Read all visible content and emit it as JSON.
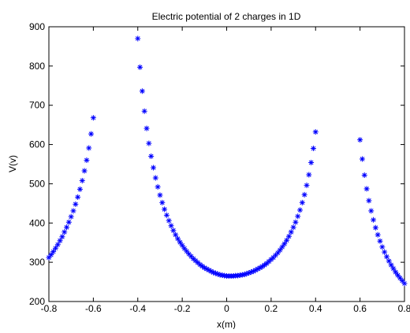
{
  "chart_data": {
    "type": "scatter",
    "title": "Electric potential of 2 charges in 1D",
    "xlabel": "x(m)",
    "ylabel": "V(v)",
    "xlim": [
      -0.8,
      0.8
    ],
    "ylim": [
      200,
      900
    ],
    "xticks": [
      "-0.8",
      "-0.6",
      "-0.4",
      "-0.2",
      "0",
      "0.2",
      "0.4",
      "0.6",
      "0.8"
    ],
    "yticks": [
      "200",
      "300",
      "400",
      "500",
      "600",
      "700",
      "800",
      "900"
    ],
    "grid": false,
    "marker": "*",
    "marker_color": "#0000ff",
    "charges_at": [
      -0.5,
      0.5
    ],
    "series": [
      {
        "x_start": -0.8,
        "x_end": 0.8,
        "x_step": 0.01,
        "excluded_x_ranges": [
          [
            -0.6,
            -0.4
          ],
          [
            0.4,
            0.6
          ]
        ]
      }
    ],
    "points": [
      [
        -0.8,
        312
      ],
      [
        -0.79,
        319
      ],
      [
        -0.78,
        327
      ],
      [
        -0.77,
        336
      ],
      [
        -0.76,
        345
      ],
      [
        -0.75,
        355
      ],
      [
        -0.74,
        365
      ],
      [
        -0.73,
        377
      ],
      [
        -0.72,
        389
      ],
      [
        -0.71,
        402
      ],
      [
        -0.7,
        416
      ],
      [
        -0.69,
        431
      ],
      [
        -0.68,
        448
      ],
      [
        -0.67,
        466
      ],
      [
        -0.66,
        486
      ],
      [
        -0.65,
        508
      ],
      [
        -0.64,
        533
      ],
      [
        -0.63,
        560
      ],
      [
        -0.62,
        591
      ],
      [
        -0.61,
        627
      ],
      [
        -0.6,
        668
      ],
      [
        -0.4,
        870
      ],
      [
        -0.39,
        797
      ],
      [
        -0.38,
        736
      ],
      [
        -0.37,
        685
      ],
      [
        -0.36,
        641
      ],
      [
        -0.35,
        603
      ],
      [
        -0.34,
        570
      ],
      [
        -0.33,
        541
      ],
      [
        -0.32,
        515
      ],
      [
        -0.31,
        492
      ],
      [
        -0.3,
        471
      ],
      [
        -0.29,
        452
      ],
      [
        -0.28,
        435
      ],
      [
        -0.27,
        420
      ],
      [
        -0.26,
        406
      ],
      [
        -0.25,
        393
      ],
      [
        -0.24,
        381
      ],
      [
        -0.23,
        370
      ],
      [
        -0.22,
        360
      ],
      [
        -0.21,
        351
      ],
      [
        -0.2,
        343
      ],
      [
        -0.19,
        335
      ],
      [
        -0.18,
        328
      ],
      [
        -0.17,
        321
      ],
      [
        -0.16,
        315
      ],
      [
        -0.15,
        309
      ],
      [
        -0.14,
        304
      ],
      [
        -0.13,
        299
      ],
      [
        -0.12,
        294
      ],
      [
        -0.11,
        290
      ],
      [
        -0.1,
        286
      ],
      [
        -0.09,
        283
      ],
      [
        -0.08,
        280
      ],
      [
        -0.07,
        277
      ],
      [
        -0.06,
        274
      ],
      [
        -0.05,
        272
      ],
      [
        -0.04,
        270
      ],
      [
        -0.03,
        268
      ],
      [
        -0.02,
        267
      ],
      [
        -0.01,
        266
      ],
      [
        0,
        265
      ],
      [
        0.01,
        265
      ],
      [
        0.02,
        265
      ],
      [
        0.03,
        265
      ],
      [
        0.04,
        266
      ],
      [
        0.05,
        266
      ],
      [
        0.06,
        267
      ],
      [
        0.07,
        268
      ],
      [
        0.08,
        269
      ],
      [
        0.09,
        271
      ],
      [
        0.1,
        273
      ],
      [
        0.11,
        275
      ],
      [
        0.12,
        277
      ],
      [
        0.13,
        280
      ],
      [
        0.14,
        283
      ],
      [
        0.15,
        286
      ],
      [
        0.16,
        289
      ],
      [
        0.17,
        293
      ],
      [
        0.18,
        297
      ],
      [
        0.19,
        302
      ],
      [
        0.2,
        307
      ],
      [
        0.21,
        312
      ],
      [
        0.22,
        318
      ],
      [
        0.23,
        324
      ],
      [
        0.24,
        331
      ],
      [
        0.25,
        339
      ],
      [
        0.26,
        347
      ],
      [
        0.27,
        356
      ],
      [
        0.28,
        366
      ],
      [
        0.29,
        377
      ],
      [
        0.3,
        389
      ],
      [
        0.31,
        402
      ],
      [
        0.32,
        417
      ],
      [
        0.33,
        433
      ],
      [
        0.34,
        452
      ],
      [
        0.35,
        472
      ],
      [
        0.36,
        496
      ],
      [
        0.37,
        523
      ],
      [
        0.38,
        554
      ],
      [
        0.39,
        590
      ],
      [
        0.4,
        632
      ],
      [
        0.6,
        612
      ],
      [
        0.61,
        563
      ],
      [
        0.62,
        522
      ],
      [
        0.63,
        487
      ],
      [
        0.64,
        457
      ],
      [
        0.65,
        431
      ],
      [
        0.66,
        408
      ],
      [
        0.67,
        388
      ],
      [
        0.68,
        370
      ],
      [
        0.69,
        354
      ],
      [
        0.7,
        339
      ],
      [
        0.71,
        326
      ],
      [
        0.72,
        314
      ],
      [
        0.73,
        303
      ],
      [
        0.74,
        293
      ],
      [
        0.75,
        284
      ],
      [
        0.76,
        275
      ],
      [
        0.77,
        267
      ],
      [
        0.78,
        260
      ],
      [
        0.79,
        253
      ],
      [
        0.8,
        246
      ]
    ]
  }
}
